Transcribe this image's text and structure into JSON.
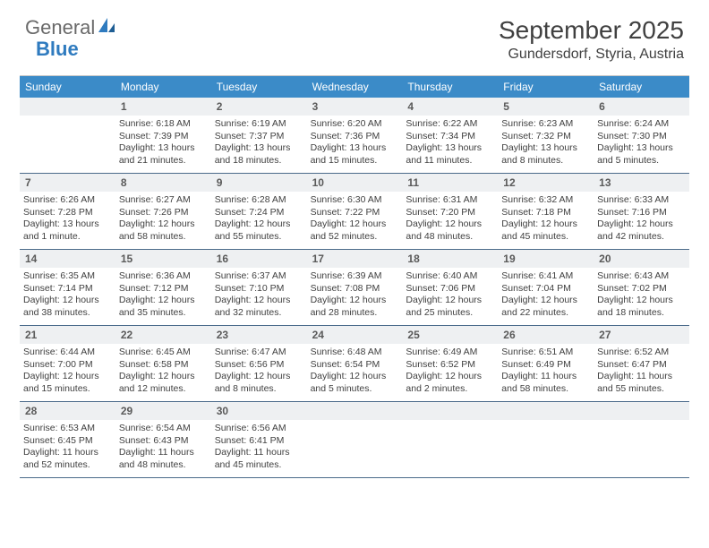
{
  "brand": {
    "part1": "General",
    "part2": "Blue"
  },
  "title": "September 2025",
  "location": "Gundersdorf, Styria, Austria",
  "colors": {
    "header_bg": "#3b8bc8",
    "header_fg": "#ffffff",
    "daynum_bg": "#eef0f2",
    "rule": "#4a6a8a",
    "text": "#404040",
    "brand_blue": "#2f7bbf"
  },
  "day_names": [
    "Sunday",
    "Monday",
    "Tuesday",
    "Wednesday",
    "Thursday",
    "Friday",
    "Saturday"
  ],
  "weeks": [
    [
      null,
      {
        "n": "1",
        "sr": "Sunrise: 6:18 AM",
        "ss": "Sunset: 7:39 PM",
        "d1": "Daylight: 13 hours",
        "d2": "and 21 minutes."
      },
      {
        "n": "2",
        "sr": "Sunrise: 6:19 AM",
        "ss": "Sunset: 7:37 PM",
        "d1": "Daylight: 13 hours",
        "d2": "and 18 minutes."
      },
      {
        "n": "3",
        "sr": "Sunrise: 6:20 AM",
        "ss": "Sunset: 7:36 PM",
        "d1": "Daylight: 13 hours",
        "d2": "and 15 minutes."
      },
      {
        "n": "4",
        "sr": "Sunrise: 6:22 AM",
        "ss": "Sunset: 7:34 PM",
        "d1": "Daylight: 13 hours",
        "d2": "and 11 minutes."
      },
      {
        "n": "5",
        "sr": "Sunrise: 6:23 AM",
        "ss": "Sunset: 7:32 PM",
        "d1": "Daylight: 13 hours",
        "d2": "and 8 minutes."
      },
      {
        "n": "6",
        "sr": "Sunrise: 6:24 AM",
        "ss": "Sunset: 7:30 PM",
        "d1": "Daylight: 13 hours",
        "d2": "and 5 minutes."
      }
    ],
    [
      {
        "n": "7",
        "sr": "Sunrise: 6:26 AM",
        "ss": "Sunset: 7:28 PM",
        "d1": "Daylight: 13 hours",
        "d2": "and 1 minute."
      },
      {
        "n": "8",
        "sr": "Sunrise: 6:27 AM",
        "ss": "Sunset: 7:26 PM",
        "d1": "Daylight: 12 hours",
        "d2": "and 58 minutes."
      },
      {
        "n": "9",
        "sr": "Sunrise: 6:28 AM",
        "ss": "Sunset: 7:24 PM",
        "d1": "Daylight: 12 hours",
        "d2": "and 55 minutes."
      },
      {
        "n": "10",
        "sr": "Sunrise: 6:30 AM",
        "ss": "Sunset: 7:22 PM",
        "d1": "Daylight: 12 hours",
        "d2": "and 52 minutes."
      },
      {
        "n": "11",
        "sr": "Sunrise: 6:31 AM",
        "ss": "Sunset: 7:20 PM",
        "d1": "Daylight: 12 hours",
        "d2": "and 48 minutes."
      },
      {
        "n": "12",
        "sr": "Sunrise: 6:32 AM",
        "ss": "Sunset: 7:18 PM",
        "d1": "Daylight: 12 hours",
        "d2": "and 45 minutes."
      },
      {
        "n": "13",
        "sr": "Sunrise: 6:33 AM",
        "ss": "Sunset: 7:16 PM",
        "d1": "Daylight: 12 hours",
        "d2": "and 42 minutes."
      }
    ],
    [
      {
        "n": "14",
        "sr": "Sunrise: 6:35 AM",
        "ss": "Sunset: 7:14 PM",
        "d1": "Daylight: 12 hours",
        "d2": "and 38 minutes."
      },
      {
        "n": "15",
        "sr": "Sunrise: 6:36 AM",
        "ss": "Sunset: 7:12 PM",
        "d1": "Daylight: 12 hours",
        "d2": "and 35 minutes."
      },
      {
        "n": "16",
        "sr": "Sunrise: 6:37 AM",
        "ss": "Sunset: 7:10 PM",
        "d1": "Daylight: 12 hours",
        "d2": "and 32 minutes."
      },
      {
        "n": "17",
        "sr": "Sunrise: 6:39 AM",
        "ss": "Sunset: 7:08 PM",
        "d1": "Daylight: 12 hours",
        "d2": "and 28 minutes."
      },
      {
        "n": "18",
        "sr": "Sunrise: 6:40 AM",
        "ss": "Sunset: 7:06 PM",
        "d1": "Daylight: 12 hours",
        "d2": "and 25 minutes."
      },
      {
        "n": "19",
        "sr": "Sunrise: 6:41 AM",
        "ss": "Sunset: 7:04 PM",
        "d1": "Daylight: 12 hours",
        "d2": "and 22 minutes."
      },
      {
        "n": "20",
        "sr": "Sunrise: 6:43 AM",
        "ss": "Sunset: 7:02 PM",
        "d1": "Daylight: 12 hours",
        "d2": "and 18 minutes."
      }
    ],
    [
      {
        "n": "21",
        "sr": "Sunrise: 6:44 AM",
        "ss": "Sunset: 7:00 PM",
        "d1": "Daylight: 12 hours",
        "d2": "and 15 minutes."
      },
      {
        "n": "22",
        "sr": "Sunrise: 6:45 AM",
        "ss": "Sunset: 6:58 PM",
        "d1": "Daylight: 12 hours",
        "d2": "and 12 minutes."
      },
      {
        "n": "23",
        "sr": "Sunrise: 6:47 AM",
        "ss": "Sunset: 6:56 PM",
        "d1": "Daylight: 12 hours",
        "d2": "and 8 minutes."
      },
      {
        "n": "24",
        "sr": "Sunrise: 6:48 AM",
        "ss": "Sunset: 6:54 PM",
        "d1": "Daylight: 12 hours",
        "d2": "and 5 minutes."
      },
      {
        "n": "25",
        "sr": "Sunrise: 6:49 AM",
        "ss": "Sunset: 6:52 PM",
        "d1": "Daylight: 12 hours",
        "d2": "and 2 minutes."
      },
      {
        "n": "26",
        "sr": "Sunrise: 6:51 AM",
        "ss": "Sunset: 6:49 PM",
        "d1": "Daylight: 11 hours",
        "d2": "and 58 minutes."
      },
      {
        "n": "27",
        "sr": "Sunrise: 6:52 AM",
        "ss": "Sunset: 6:47 PM",
        "d1": "Daylight: 11 hours",
        "d2": "and 55 minutes."
      }
    ],
    [
      {
        "n": "28",
        "sr": "Sunrise: 6:53 AM",
        "ss": "Sunset: 6:45 PM",
        "d1": "Daylight: 11 hours",
        "d2": "and 52 minutes."
      },
      {
        "n": "29",
        "sr": "Sunrise: 6:54 AM",
        "ss": "Sunset: 6:43 PM",
        "d1": "Daylight: 11 hours",
        "d2": "and 48 minutes."
      },
      {
        "n": "30",
        "sr": "Sunrise: 6:56 AM",
        "ss": "Sunset: 6:41 PM",
        "d1": "Daylight: 11 hours",
        "d2": "and 45 minutes."
      },
      null,
      null,
      null,
      null
    ]
  ]
}
